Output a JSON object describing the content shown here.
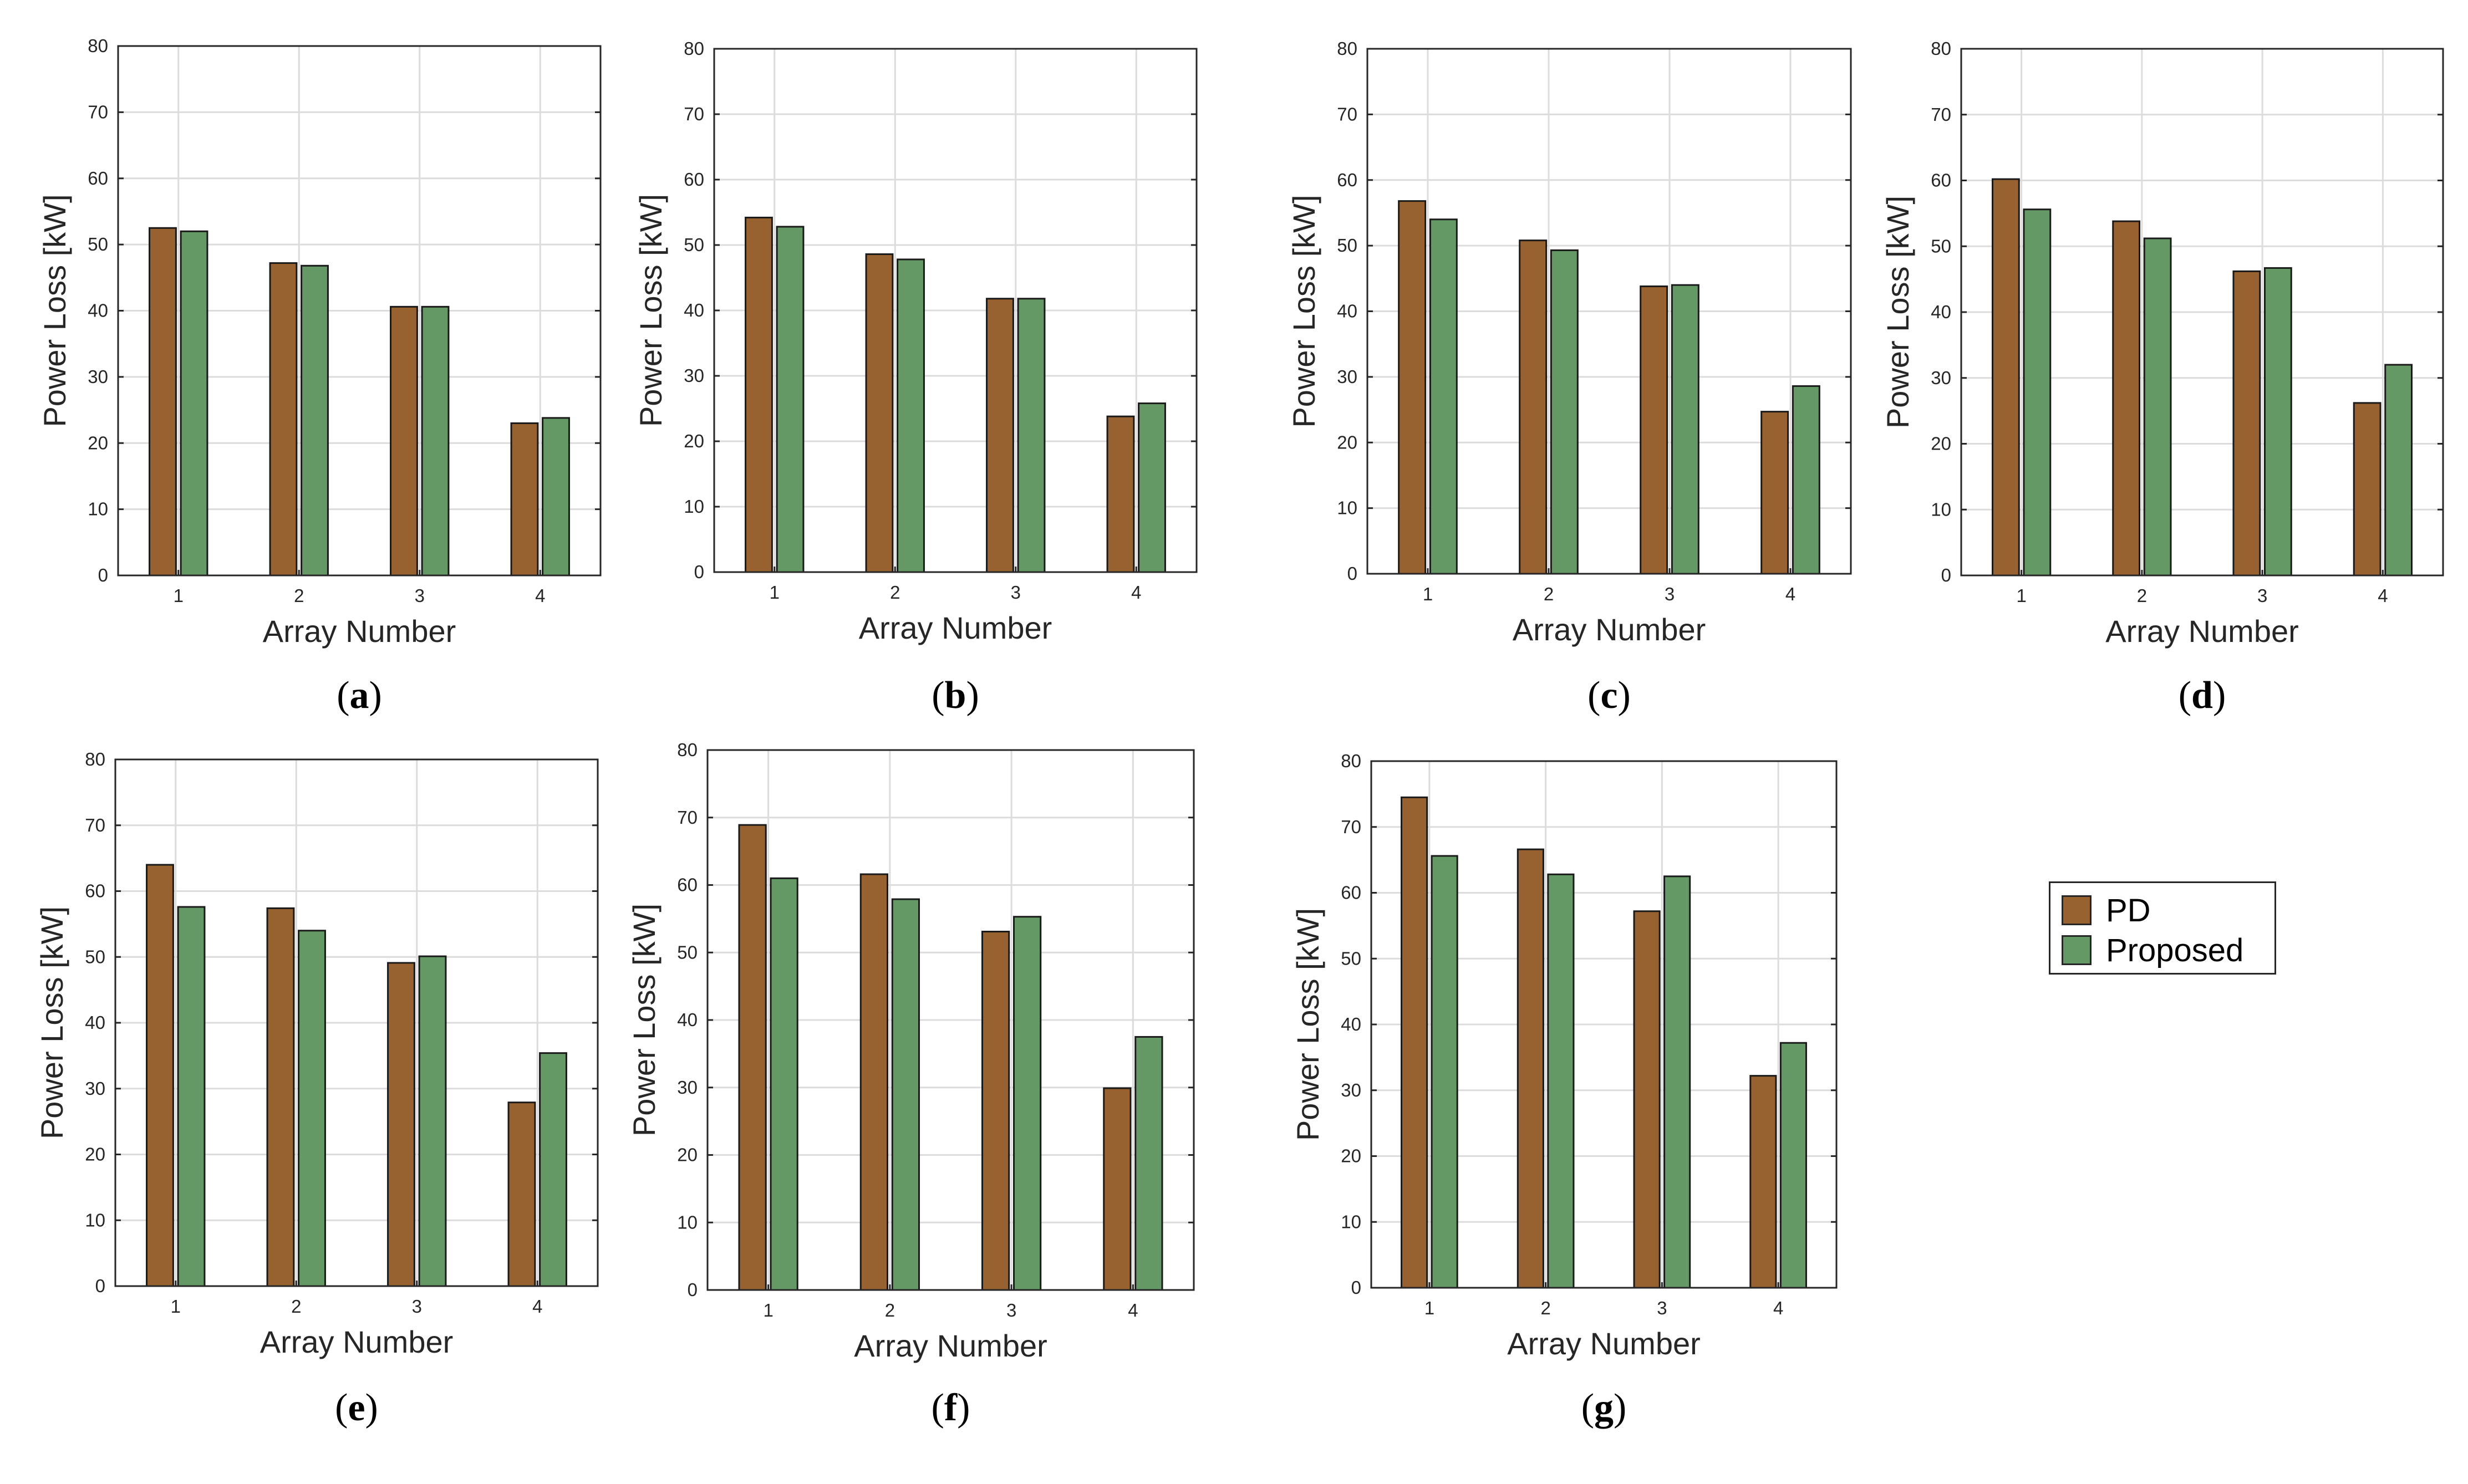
{
  "colors": {
    "pd": "#97622f",
    "proposed": "#649965",
    "grid": "#dcdcdc",
    "axis": "#262626"
  },
  "legend": {
    "items": [
      {
        "label": "PD",
        "color": "#97622f"
      },
      {
        "label": "Proposed",
        "color": "#649965"
      }
    ]
  },
  "chart_data": [
    {
      "type": "bar",
      "panel_label": "(a)",
      "panel_letter": "a",
      "categories": [
        "1",
        "2",
        "3",
        "4"
      ],
      "xlabel": "Array Number",
      "ylabel": "Power Loss [kW]",
      "ylim": [
        0,
        80
      ],
      "yticks": [
        "0",
        "10",
        "20",
        "30",
        "40",
        "50",
        "60",
        "70",
        "80"
      ],
      "grid": true,
      "series": [
        {
          "name": "PD",
          "values": [
            52.5,
            47.2,
            40.6,
            23.0
          ]
        },
        {
          "name": "Proposed",
          "values": [
            52.0,
            46.8,
            40.6,
            23.8
          ]
        }
      ]
    },
    {
      "type": "bar",
      "panel_label": "(b)",
      "panel_letter": "b",
      "categories": [
        "1",
        "2",
        "3",
        "4"
      ],
      "xlabel": "Array Number",
      "ylabel": "Power Loss [kW]",
      "ylim": [
        0,
        80
      ],
      "yticks": [
        "0",
        "10",
        "20",
        "30",
        "40",
        "50",
        "60",
        "70",
        "80"
      ],
      "grid": true,
      "series": [
        {
          "name": "PD",
          "values": [
            54.2,
            48.6,
            41.8,
            23.8
          ]
        },
        {
          "name": "Proposed",
          "values": [
            52.8,
            47.8,
            41.8,
            25.8
          ]
        }
      ]
    },
    {
      "type": "bar",
      "panel_label": "(c)",
      "panel_letter": "c",
      "categories": [
        "1",
        "2",
        "3",
        "4"
      ],
      "xlabel": "Array Number",
      "ylabel": "Power Loss [kW]",
      "ylim": [
        0,
        80
      ],
      "yticks": [
        "0",
        "10",
        "20",
        "30",
        "40",
        "50",
        "60",
        "70",
        "80"
      ],
      "grid": true,
      "series": [
        {
          "name": "PD",
          "values": [
            56.8,
            50.8,
            43.8,
            24.7
          ]
        },
        {
          "name": "Proposed",
          "values": [
            54.0,
            49.3,
            44.0,
            28.6
          ]
        }
      ]
    },
    {
      "type": "bar",
      "panel_label": "(d)",
      "panel_letter": "d",
      "categories": [
        "1",
        "2",
        "3",
        "4"
      ],
      "xlabel": "Array Number",
      "ylabel": "Power Loss [kW]",
      "ylim": [
        0,
        80
      ],
      "yticks": [
        "0",
        "10",
        "20",
        "30",
        "40",
        "50",
        "60",
        "70",
        "80"
      ],
      "grid": true,
      "series": [
        {
          "name": "PD",
          "values": [
            60.2,
            53.8,
            46.2,
            26.2
          ]
        },
        {
          "name": "Proposed",
          "values": [
            55.6,
            51.2,
            46.7,
            32.0
          ]
        }
      ]
    },
    {
      "type": "bar",
      "panel_label": "(e)",
      "panel_letter": "e",
      "categories": [
        "1",
        "2",
        "3",
        "4"
      ],
      "xlabel": "Array Number",
      "ylabel": "Power Loss [kW]",
      "ylim": [
        0,
        80
      ],
      "yticks": [
        "0",
        "10",
        "20",
        "30",
        "40",
        "50",
        "60",
        "70",
        "80"
      ],
      "grid": true,
      "series": [
        {
          "name": "PD",
          "values": [
            64.0,
            57.4,
            49.1,
            27.9
          ]
        },
        {
          "name": "Proposed",
          "values": [
            57.6,
            54.0,
            50.1,
            35.4
          ]
        }
      ]
    },
    {
      "type": "bar",
      "panel_label": "(f)",
      "panel_letter": "f",
      "categories": [
        "1",
        "2",
        "3",
        "4"
      ],
      "xlabel": "Array Number",
      "ylabel": "Power Loss [kW]",
      "ylim": [
        0,
        80
      ],
      "yticks": [
        "0",
        "10",
        "20",
        "30",
        "40",
        "50",
        "60",
        "70",
        "80"
      ],
      "grid": true,
      "series": [
        {
          "name": "PD",
          "values": [
            68.9,
            61.6,
            53.1,
            29.9
          ]
        },
        {
          "name": "Proposed",
          "values": [
            61.0,
            57.9,
            55.3,
            37.5
          ]
        }
      ]
    },
    {
      "type": "bar",
      "panel_label": "(g)",
      "panel_letter": "g",
      "categories": [
        "1",
        "2",
        "3",
        "4"
      ],
      "xlabel": "Array Number",
      "ylabel": "Power Loss [kW]",
      "ylim": [
        0,
        80
      ],
      "yticks": [
        "0",
        "10",
        "20",
        "30",
        "40",
        "50",
        "60",
        "70",
        "80"
      ],
      "grid": true,
      "series": [
        {
          "name": "PD",
          "values": [
            74.5,
            66.6,
            57.2,
            32.2
          ]
        },
        {
          "name": "Proposed",
          "values": [
            65.6,
            62.8,
            62.5,
            37.2
          ]
        }
      ]
    }
  ]
}
